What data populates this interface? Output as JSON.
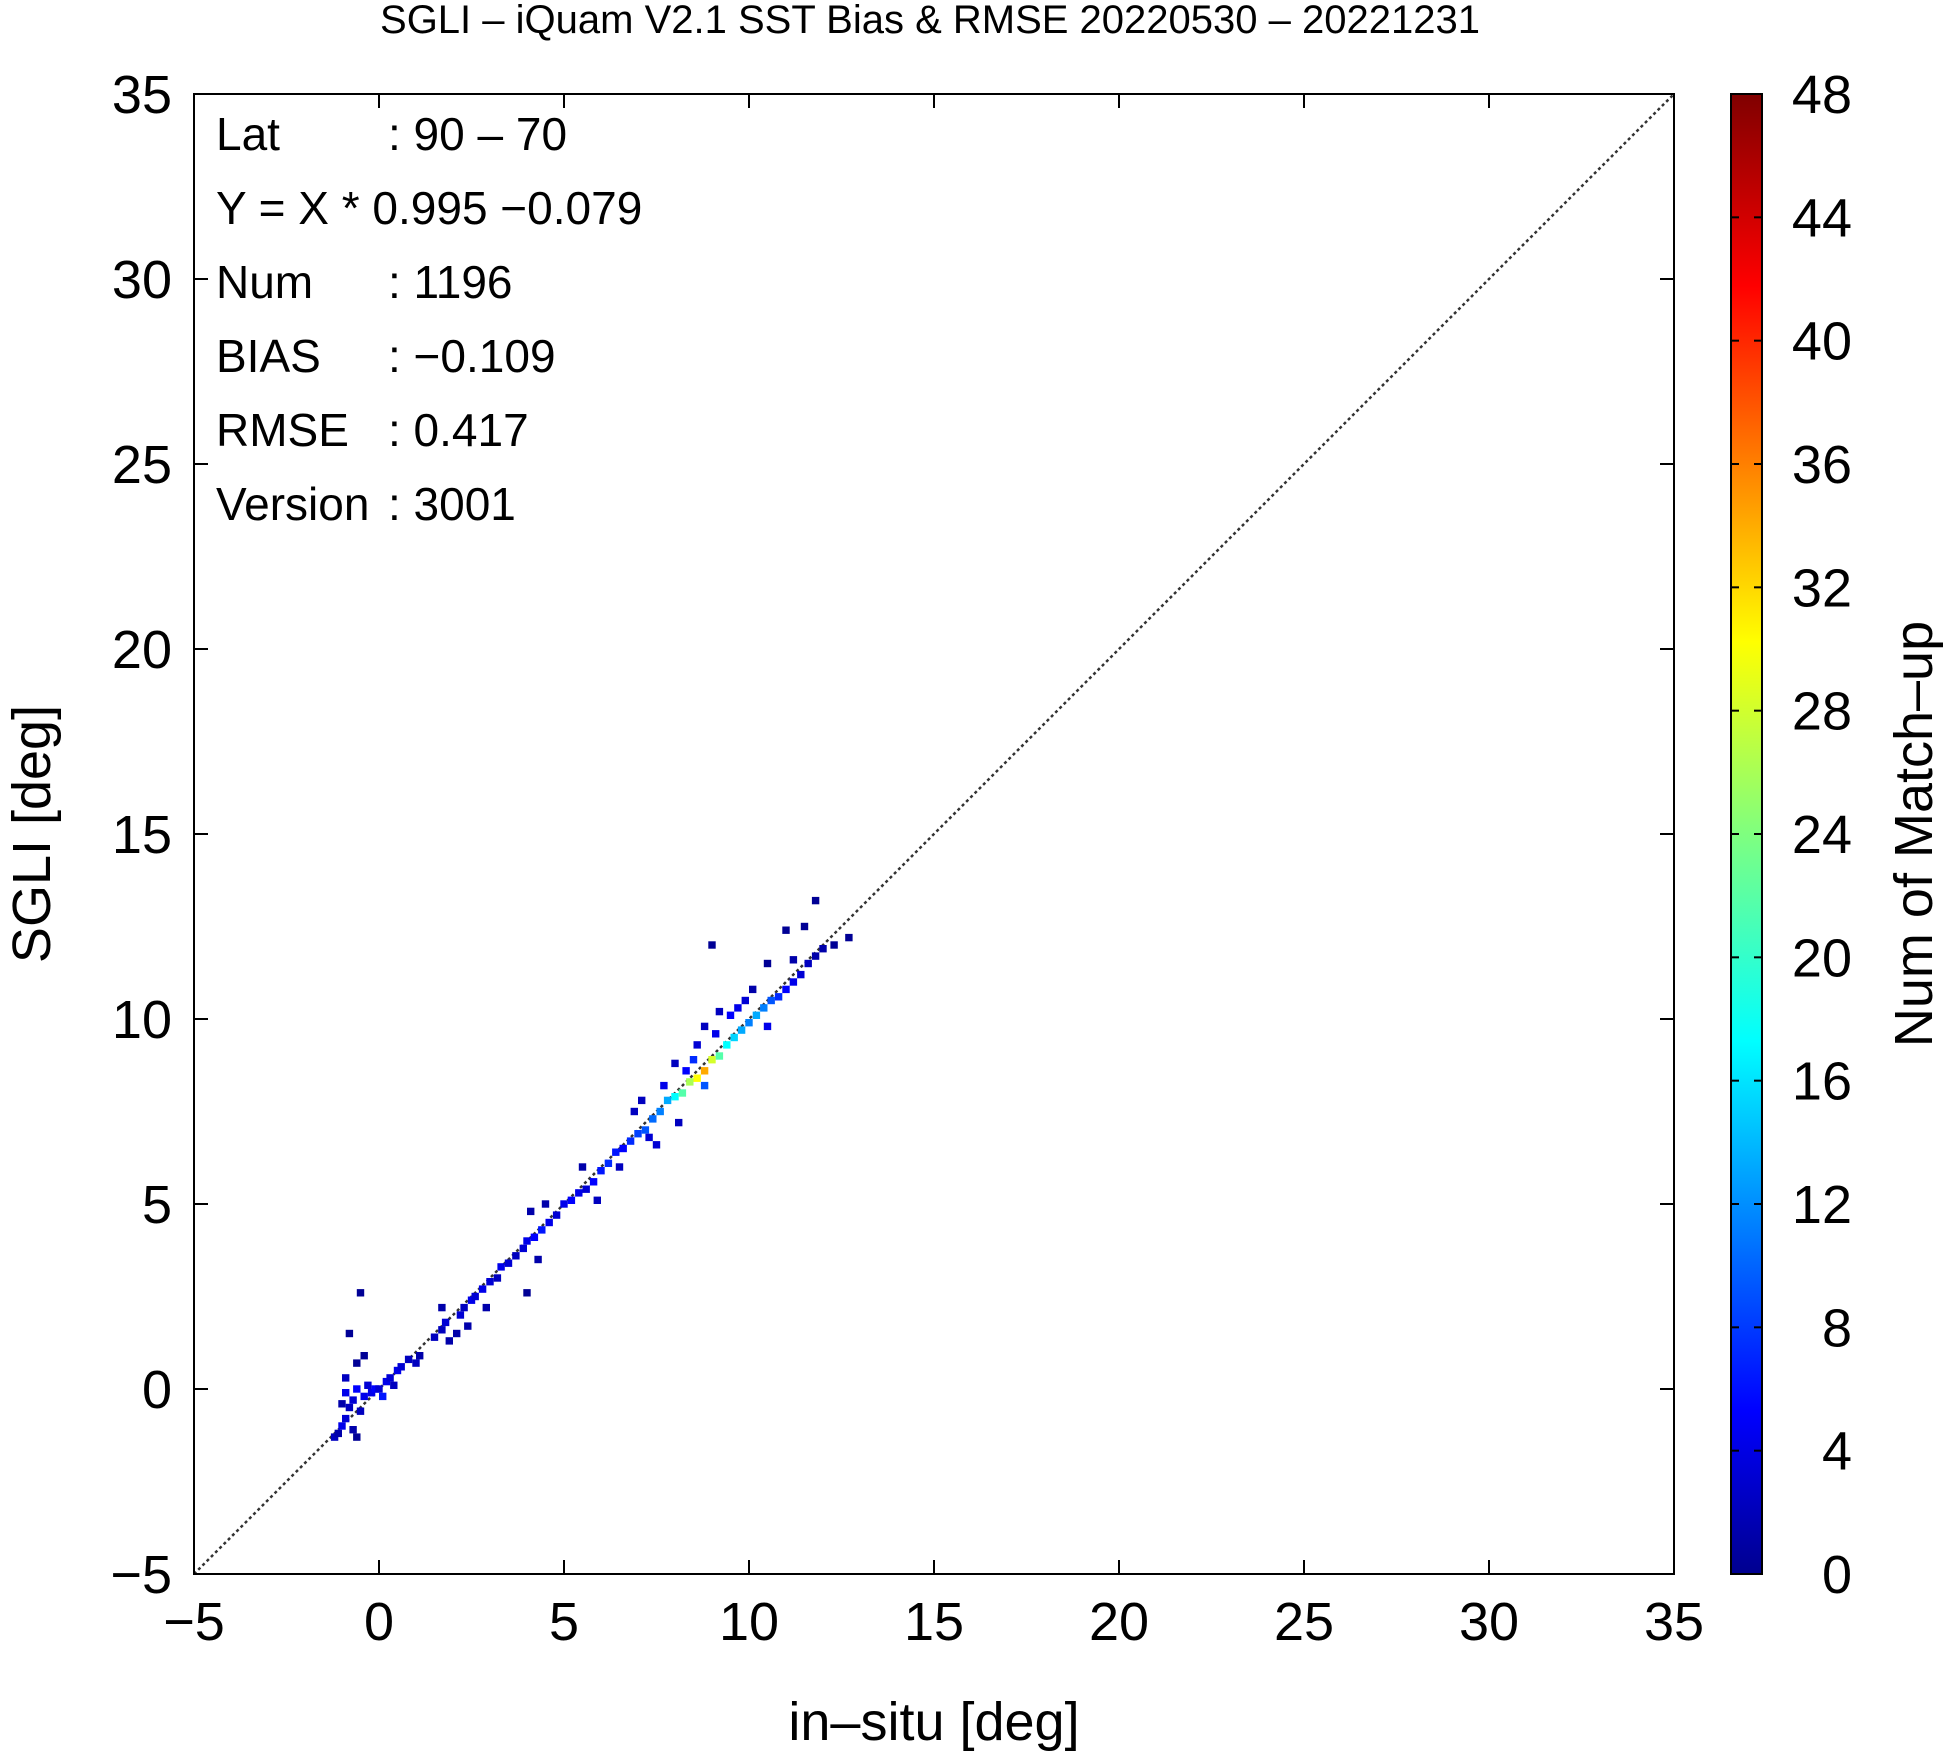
{
  "chart_data": {
    "type": "heatmap",
    "title": "SGLI – iQuam V2.1 SST Bias & RMSE 20220530 – 20221231",
    "xlabel": "in–situ [deg]",
    "ylabel": "SGLI [deg]",
    "xlim": [
      -5,
      35
    ],
    "ylim": [
      -5,
      35
    ],
    "x_ticks": [
      "−5",
      "0",
      "5",
      "10",
      "15",
      "20",
      "25",
      "30",
      "35"
    ],
    "y_ticks": [
      "−5",
      "0",
      "5",
      "10",
      "15",
      "20",
      "25",
      "30",
      "35"
    ],
    "reference_line": "y = x",
    "grid": false,
    "colorbar": {
      "label": "Num of Match–up",
      "range": [
        0,
        48
      ],
      "ticks": [
        "0",
        "4",
        "8",
        "12",
        "16",
        "20",
        "24",
        "28",
        "32",
        "36",
        "40",
        "44",
        "48"
      ],
      "colormap": "jet"
    },
    "stats": [
      {
        "label": "Lat",
        "value": ": 90 – 70"
      },
      {
        "label": "Y = X * 0.995 −0.079",
        "value": ""
      },
      {
        "label": "Num",
        "value": ": 1196"
      },
      {
        "label": "BIAS",
        "value": ": −0.109"
      },
      {
        "label": "RMSE",
        "value": ": 0.417"
      },
      {
        "label": "Version",
        "value": ": 3001"
      }
    ],
    "cells": [
      [
        -1.2,
        -1.3,
        3
      ],
      [
        -1.1,
        -1.2,
        2
      ],
      [
        -1.0,
        -1.0,
        5
      ],
      [
        -0.9,
        -0.8,
        4
      ],
      [
        -1.0,
        -0.4,
        2
      ],
      [
        -0.8,
        -0.5,
        3
      ],
      [
        -0.7,
        -0.3,
        4
      ],
      [
        -0.9,
        -0.1,
        5
      ],
      [
        -0.6,
        0.0,
        6
      ],
      [
        -0.7,
        -1.1,
        2
      ],
      [
        -0.5,
        -0.6,
        3
      ],
      [
        -0.4,
        -0.2,
        5
      ],
      [
        -0.3,
        0.1,
        4
      ],
      [
        -0.9,
        0.3,
        3
      ],
      [
        -0.8,
        1.5,
        1
      ],
      [
        -0.6,
        0.7,
        1
      ],
      [
        -0.5,
        2.6,
        1
      ],
      [
        -0.4,
        0.9,
        1
      ],
      [
        -0.6,
        -1.3,
        1
      ],
      [
        -0.2,
        -0.1,
        5
      ],
      [
        -0.1,
        0.0,
        6
      ],
      [
        0.0,
        0.0,
        4
      ],
      [
        0.1,
        -0.2,
        7
      ],
      [
        0.2,
        0.2,
        5
      ],
      [
        0.3,
        0.3,
        4
      ],
      [
        0.4,
        0.1,
        3
      ],
      [
        0.5,
        0.5,
        5
      ],
      [
        0.6,
        0.6,
        4
      ],
      [
        0.8,
        0.8,
        3
      ],
      [
        1.0,
        0.7,
        3
      ],
      [
        1.1,
        0.9,
        2
      ],
      [
        1.5,
        1.4,
        3
      ],
      [
        1.7,
        1.6,
        3
      ],
      [
        1.8,
        1.8,
        4
      ],
      [
        1.7,
        2.2,
        2
      ],
      [
        1.9,
        1.3,
        2
      ],
      [
        2.1,
        1.5,
        2
      ],
      [
        2.2,
        2.0,
        4
      ],
      [
        2.3,
        2.2,
        3
      ],
      [
        2.5,
        2.4,
        5
      ],
      [
        2.6,
        2.5,
        4
      ],
      [
        2.4,
        1.7,
        2
      ],
      [
        2.8,
        2.7,
        5
      ],
      [
        3.0,
        2.9,
        4
      ],
      [
        3.2,
        3.0,
        3
      ],
      [
        2.9,
        2.2,
        2
      ],
      [
        3.3,
        3.3,
        5
      ],
      [
        3.5,
        3.4,
        4
      ],
      [
        3.7,
        3.6,
        3
      ],
      [
        3.9,
        3.8,
        4
      ],
      [
        4.0,
        4.0,
        5
      ],
      [
        4.2,
        4.1,
        6
      ],
      [
        4.4,
        4.3,
        7
      ],
      [
        4.6,
        4.5,
        5
      ],
      [
        4.8,
        4.7,
        4
      ],
      [
        4.3,
        3.5,
        2
      ],
      [
        4.1,
        4.8,
        2
      ],
      [
        4.5,
        5.0,
        2
      ],
      [
        4.0,
        2.6,
        1
      ],
      [
        5.0,
        5.0,
        5
      ],
      [
        5.2,
        5.1,
        6
      ],
      [
        5.4,
        5.3,
        5
      ],
      [
        5.6,
        5.4,
        4
      ],
      [
        5.8,
        5.6,
        6
      ],
      [
        6.0,
        5.9,
        7
      ],
      [
        5.5,
        6.0,
        2
      ],
      [
        5.9,
        5.1,
        3
      ],
      [
        6.2,
        6.1,
        8
      ],
      [
        6.4,
        6.4,
        7
      ],
      [
        6.6,
        6.5,
        6
      ],
      [
        6.8,
        6.7,
        8
      ],
      [
        7.0,
        6.9,
        9
      ],
      [
        7.2,
        7.0,
        10
      ],
      [
        7.4,
        7.3,
        11
      ],
      [
        7.6,
        7.5,
        12
      ],
      [
        6.9,
        7.5,
        3
      ],
      [
        7.1,
        7.8,
        3
      ],
      [
        7.3,
        6.8,
        4
      ],
      [
        7.8,
        7.8,
        14
      ],
      [
        8.0,
        7.9,
        18
      ],
      [
        8.2,
        8.0,
        22
      ],
      [
        8.4,
        8.3,
        26
      ],
      [
        8.6,
        8.4,
        30
      ],
      [
        8.8,
        8.6,
        34
      ],
      [
        9.0,
        8.9,
        28
      ],
      [
        8.5,
        8.9,
        8
      ],
      [
        8.3,
        8.6,
        6
      ],
      [
        8.8,
        8.2,
        10
      ],
      [
        9.2,
        9.0,
        22
      ],
      [
        9.4,
        9.3,
        18
      ],
      [
        9.6,
        9.5,
        16
      ],
      [
        9.8,
        9.7,
        14
      ],
      [
        10.0,
        9.9,
        12
      ],
      [
        10.2,
        10.1,
        14
      ],
      [
        10.4,
        10.3,
        12
      ],
      [
        10.6,
        10.5,
        10
      ],
      [
        9.5,
        10.1,
        6
      ],
      [
        9.7,
        10.3,
        5
      ],
      [
        9.9,
        10.5,
        4
      ],
      [
        9.1,
        9.6,
        5
      ],
      [
        8.8,
        9.8,
        3
      ],
      [
        8.6,
        9.3,
        4
      ],
      [
        9.2,
        10.2,
        3
      ],
      [
        10.1,
        10.8,
        2
      ],
      [
        10.5,
        9.8,
        5
      ],
      [
        10.8,
        10.6,
        8
      ],
      [
        11.0,
        10.8,
        6
      ],
      [
        11.2,
        11.0,
        5
      ],
      [
        11.4,
        11.2,
        4
      ],
      [
        11.6,
        11.5,
        3
      ],
      [
        11.8,
        11.7,
        2
      ],
      [
        11.2,
        11.6,
        2
      ],
      [
        11.0,
        12.4,
        1
      ],
      [
        11.5,
        12.5,
        1
      ],
      [
        11.8,
        13.2,
        1
      ],
      [
        12.0,
        11.9,
        2
      ],
      [
        12.3,
        12.0,
        1
      ],
      [
        12.7,
        12.2,
        1
      ],
      [
        9.0,
        12.0,
        1
      ],
      [
        10.5,
        11.5,
        1
      ],
      [
        7.5,
        6.6,
        4
      ],
      [
        6.5,
        6.0,
        3
      ],
      [
        8.1,
        7.2,
        3
      ],
      [
        8.0,
        8.8,
        3
      ],
      [
        7.7,
        8.2,
        5
      ]
    ]
  }
}
